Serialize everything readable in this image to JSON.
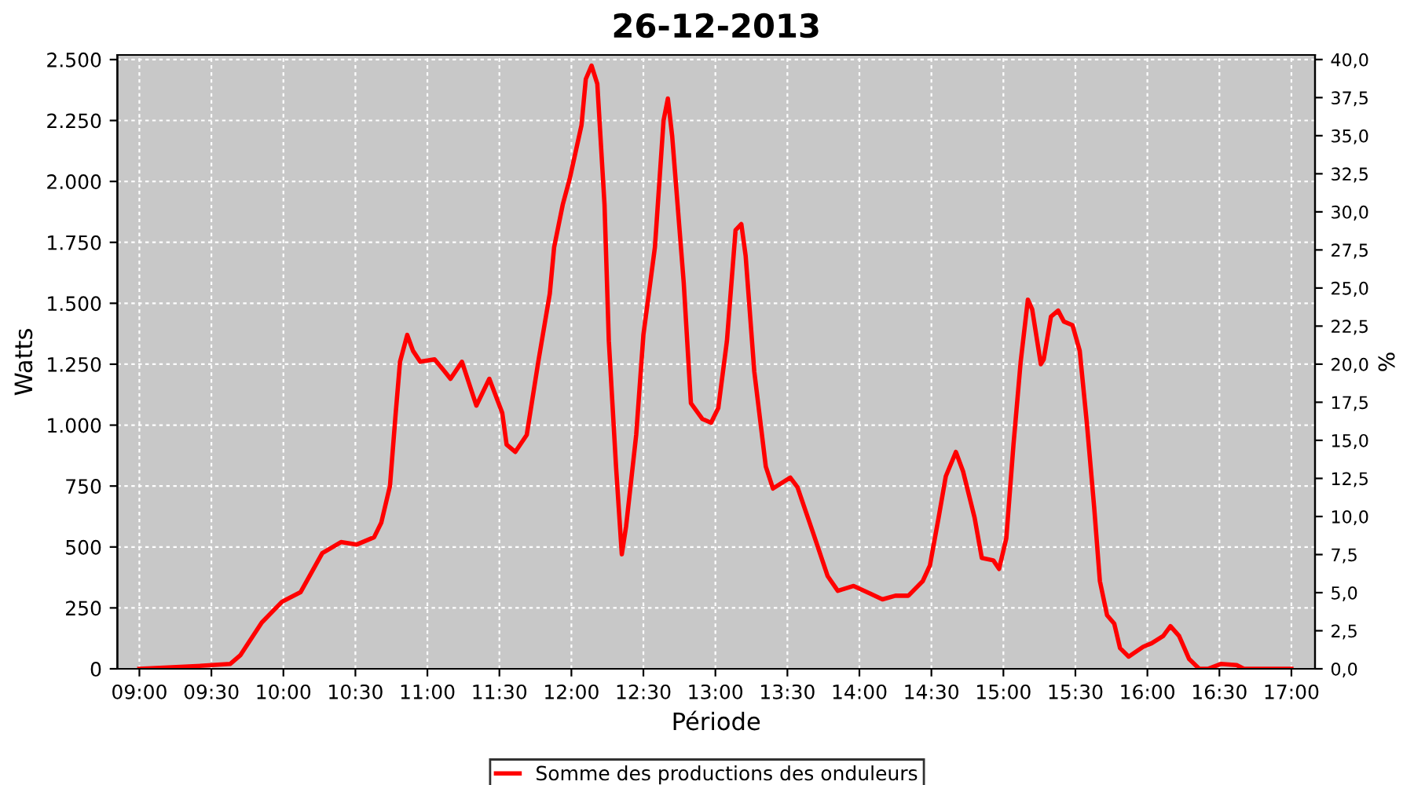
{
  "chart_data": {
    "type": "line",
    "title": "26-12-2013",
    "xlabel": "Période",
    "ylabel": "Watts",
    "y2label": "%",
    "xlim": [
      8.847,
      17.164
    ],
    "xticks": [
      {
        "value": 9,
        "label": "09:00"
      },
      {
        "value": 9.5,
        "label": "09:30"
      },
      {
        "value": 10,
        "label": "10:00"
      },
      {
        "value": 10.5,
        "label": "10:30"
      },
      {
        "value": 11,
        "label": "11:00"
      },
      {
        "value": 11.5,
        "label": "11:30"
      },
      {
        "value": 12,
        "label": "12:00"
      },
      {
        "value": 12.5,
        "label": "12:30"
      },
      {
        "value": 13,
        "label": "13:00"
      },
      {
        "value": 13.5,
        "label": "13:30"
      },
      {
        "value": 14,
        "label": "14:00"
      },
      {
        "value": 14.5,
        "label": "14:30"
      },
      {
        "value": 15,
        "label": "15:00"
      },
      {
        "value": 15.5,
        "label": "15:30"
      },
      {
        "value": 16,
        "label": "16:00"
      },
      {
        "value": 16.5,
        "label": "16:30"
      },
      {
        "value": 17,
        "label": "17:00"
      }
    ],
    "ylim": [
      0,
      2519
    ],
    "yticks": [
      0,
      250,
      500,
      750,
      {
        "value": 1000,
        "label": "1.000"
      },
      {
        "value": 1250,
        "label": "1.250"
      },
      {
        "value": 1500,
        "label": "1.500"
      },
      {
        "value": 1750,
        "label": "1.750"
      },
      {
        "value": 2000,
        "label": "2.000"
      },
      {
        "value": 2250,
        "label": "2.250"
      },
      {
        "value": 2500,
        "label": "2.500"
      }
    ],
    "y2lim": [
      0,
      40.3
    ],
    "y2ticks": [
      {
        "value": 0,
        "label": "0,0"
      },
      {
        "value": 2.5,
        "label": "2,5"
      },
      {
        "value": 5,
        "label": "5,0"
      },
      {
        "value": 7.5,
        "label": "7,5"
      },
      {
        "value": 10,
        "label": "10,0"
      },
      {
        "value": 12.5,
        "label": "12,5"
      },
      {
        "value": 15,
        "label": "15,0"
      },
      {
        "value": 17.5,
        "label": "17,5"
      },
      {
        "value": 20,
        "label": "20,0"
      },
      {
        "value": 22.5,
        "label": "22,5"
      },
      {
        "value": 25,
        "label": "25,0"
      },
      {
        "value": 27.5,
        "label": "27,5"
      },
      {
        "value": 30,
        "label": "30,0"
      },
      {
        "value": 32.5,
        "label": "32,5"
      },
      {
        "value": 35,
        "label": "35,0"
      },
      {
        "value": 37.5,
        "label": "37,5"
      },
      {
        "value": 40,
        "label": "40,0"
      }
    ],
    "grid": true,
    "legend": "bottom",
    "marker": "none",
    "line_style": "solid",
    "series": [
      {
        "name": "Somme des productions des onduleurs",
        "color": "#ff0000",
        "x": [
          9.0,
          9.37,
          9.63,
          9.7,
          9.85,
          9.99,
          10.12,
          10.27,
          10.4,
          10.51,
          10.63,
          10.68,
          10.74,
          10.78,
          10.81,
          10.86,
          10.9,
          10.95,
          11.05,
          11.12,
          11.16,
          11.24,
          11.34,
          11.43,
          11.52,
          11.55,
          11.61,
          11.69,
          11.77,
          11.85,
          11.88,
          11.94,
          11.99,
          12.07,
          12.1,
          12.14,
          12.18,
          12.23,
          12.26,
          12.31,
          12.35,
          12.38,
          12.45,
          12.5,
          12.58,
          12.64,
          12.67,
          12.7,
          12.78,
          12.83,
          12.91,
          12.97,
          13.02,
          13.08,
          13.14,
          13.18,
          13.21,
          13.27,
          13.35,
          13.4,
          13.52,
          13.57,
          13.68,
          13.78,
          13.85,
          13.96,
          14.07,
          14.16,
          14.25,
          14.34,
          14.44,
          14.49,
          14.55,
          14.6,
          14.67,
          14.72,
          14.8,
          14.85,
          14.93,
          14.97,
          15.02,
          15.07,
          15.12,
          15.17,
          15.2,
          15.26,
          15.28,
          15.33,
          15.38,
          15.42,
          15.48,
          15.53,
          15.58,
          15.63,
          15.67,
          15.72,
          15.77,
          15.81,
          15.87,
          15.97,
          16.03,
          16.11,
          16.16,
          16.22,
          16.29,
          16.36,
          16.42,
          16.51,
          16.62,
          16.67,
          17.0
        ],
        "values": [
          0,
          10,
          20,
          55,
          190,
          275,
          315,
          475,
          520,
          510,
          540,
          600,
          750,
          1050,
          1260,
          1370,
          1305,
          1260,
          1270,
          1220,
          1190,
          1260,
          1080,
          1190,
          1050,
          920,
          890,
          960,
          1260,
          1540,
          1730,
          1905,
          2015,
          2230,
          2420,
          2475,
          2400,
          1905,
          1345,
          830,
          470,
          585,
          960,
          1370,
          1730,
          2250,
          2340,
          2185,
          1585,
          1090,
          1025,
          1010,
          1070,
          1345,
          1800,
          1825,
          1695,
          1220,
          830,
          740,
          785,
          745,
          555,
          380,
          320,
          340,
          310,
          285,
          300,
          300,
          360,
          425,
          620,
          790,
          890,
          810,
          620,
          455,
          445,
          410,
          535,
          920,
          1260,
          1515,
          1475,
          1250,
          1270,
          1445,
          1470,
          1425,
          1410,
          1305,
          1005,
          665,
          360,
          220,
          185,
          85,
          50,
          90,
          105,
          135,
          175,
          135,
          40,
          0,
          0,
          20,
          15,
          0,
          0
        ]
      }
    ]
  }
}
